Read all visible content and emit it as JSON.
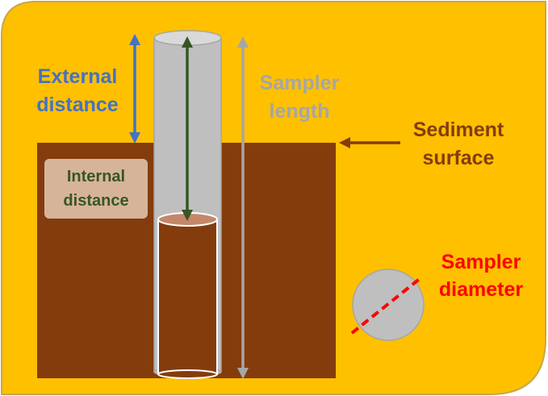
{
  "labels": {
    "external": [
      "External",
      "distance"
    ],
    "sampler_length": [
      "Sampler",
      "length"
    ],
    "sediment_surface": [
      "Sediment",
      "surface"
    ],
    "internal": [
      "Internal",
      "distance"
    ],
    "sampler_diameter": [
      "Sampler",
      "diameter"
    ]
  },
  "colors": {
    "background": "#FFC000",
    "border": "#C8A64B",
    "sediment": "#843C0C",
    "tube": "#BFBFBF",
    "external_arrow": "#4472C4",
    "internal_arrow": "#375623",
    "length_arrow": "#A6A6A6",
    "surface_arrow": "#843C0C",
    "diameter_line": "#FF0000",
    "internal_box": "#D6B49A"
  }
}
